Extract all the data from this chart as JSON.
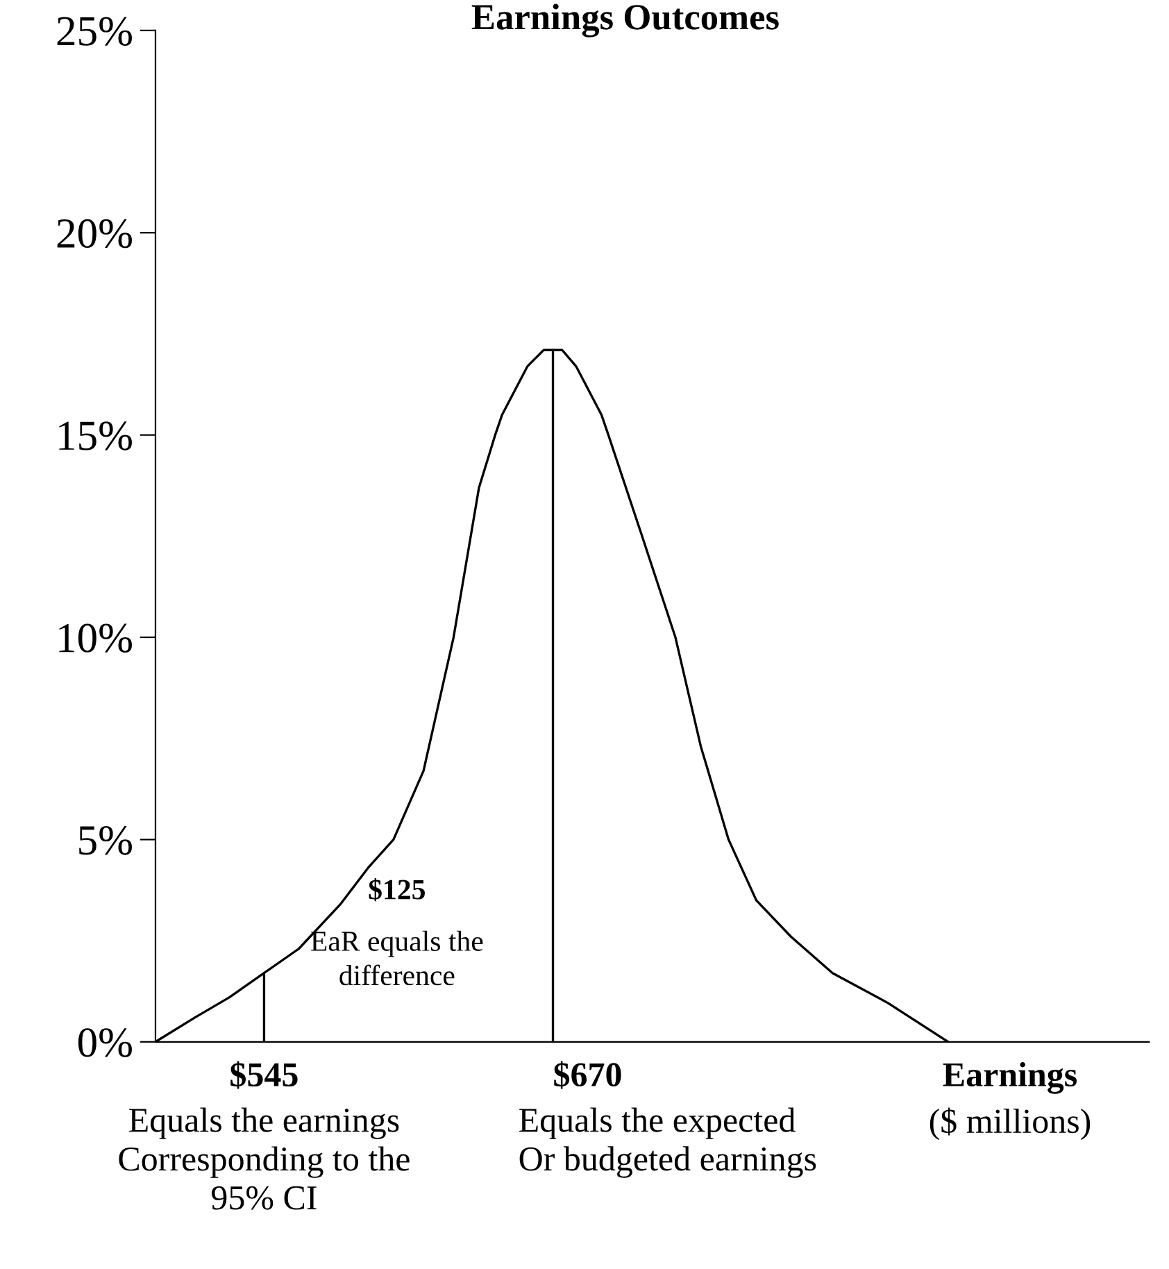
{
  "chart_data": {
    "type": "line",
    "title": "Earnings Outcomes",
    "xlabel": "Earnings\n($ millions)",
    "x": [
      498,
      515,
      530,
      545,
      560,
      578,
      590,
      601,
      614,
      627,
      638,
      645,
      648,
      659,
      666,
      670,
      674,
      680,
      691,
      694,
      708,
      723,
      734,
      746,
      758,
      773,
      791,
      815,
      841
    ],
    "series": [
      {
        "color": "#000000",
        "values": [
          0,
          0.6,
          1.1,
          1.7,
          2.3,
          3.4,
          4.3,
          5.0,
          6.7,
          10.0,
          13.7,
          15.0,
          15.5,
          16.7,
          17.1,
          17.1,
          17.1,
          16.7,
          15.5,
          15.0,
          12.6,
          10.0,
          7.3,
          5.0,
          3.5,
          2.6,
          1.7,
          0.96,
          0
        ]
      }
    ],
    "xlim": [
      498,
      928
    ],
    "ylim": [
      0,
      25
    ],
    "yticks": [
      {
        "value": 0,
        "label": "0%"
      },
      {
        "value": 5,
        "label": "5%"
      },
      {
        "value": 10,
        "label": "10%"
      },
      {
        "value": 15,
        "label": "15%"
      },
      {
        "value": 20,
        "label": "20%"
      },
      {
        "value": 25,
        "label": "25%"
      }
    ],
    "tick_labels": "y",
    "ref_lines": [
      {
        "axis": "x",
        "value": 545,
        "label": "$545",
        "color": "#000000"
      },
      {
        "axis": "x",
        "value": 670,
        "label": "$670",
        "color": "#000000"
      }
    ],
    "annotations": [
      "$125",
      "EaR equals the\ndifference",
      "Equals the earnings\nCorresponding to the\n95% CI",
      "Equals the expected\nOr budgeted earnings"
    ],
    "grid": false,
    "legend": false,
    "marker": "none",
    "line_style": "solid"
  }
}
